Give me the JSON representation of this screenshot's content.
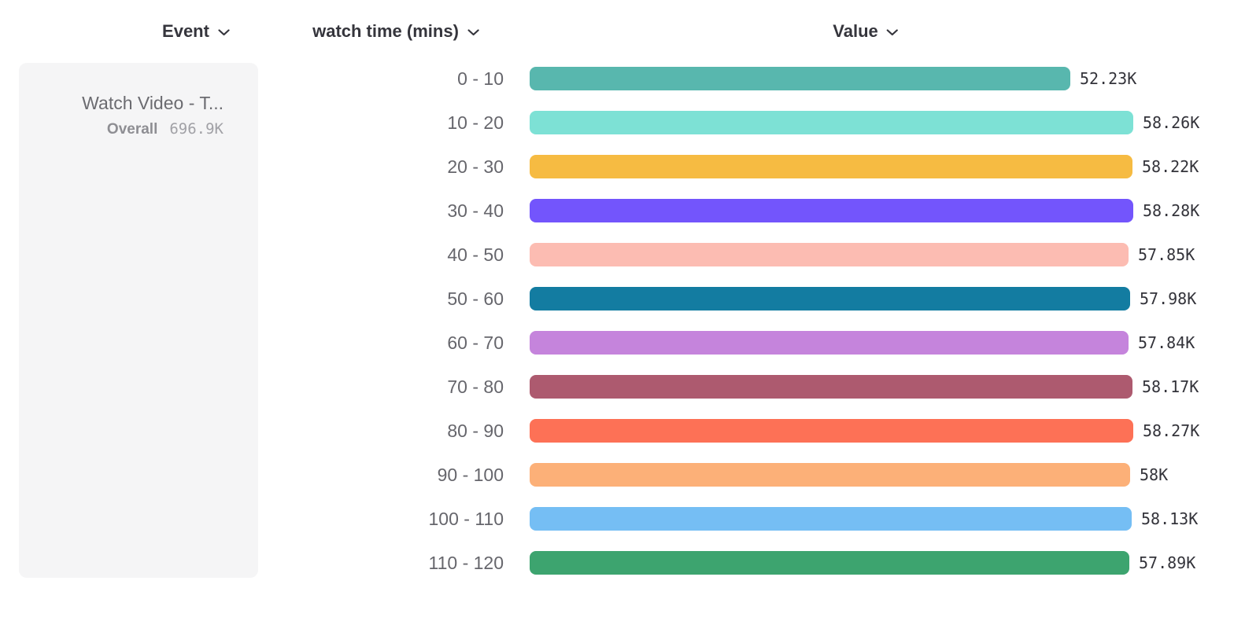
{
  "header": {
    "columns": [
      {
        "label": "Event"
      },
      {
        "label": "watch time (mins)"
      },
      {
        "label": "Value"
      }
    ]
  },
  "legend": {
    "event_name": "Watch Video - T...",
    "overall_label": "Overall",
    "overall_value": "696.9K"
  },
  "colors": {
    "header_text": "#35353c",
    "bucket_label_text": "#66666c",
    "value_text": "#33333a",
    "card_background": "#f5f5f6"
  },
  "chart_data": {
    "type": "bar",
    "orientation": "horizontal",
    "title": "",
    "xlabel": "Value",
    "ylabel": "watch time (mins)",
    "series_name": "Watch Video - T...",
    "series_overall_total": "696.9K",
    "categories": [
      "0 - 10",
      "10 - 20",
      "20 - 30",
      "30 - 40",
      "40 - 50",
      "50 - 60",
      "60 - 70",
      "70 - 80",
      "80 - 90",
      "90 - 100",
      "100 - 110",
      "110 - 120"
    ],
    "values": [
      52230,
      58260,
      58220,
      58280,
      57850,
      57980,
      57840,
      58170,
      58270,
      58000,
      58130,
      57890
    ],
    "value_labels": [
      "52.23K",
      "58.26K",
      "58.22K",
      "58.28K",
      "57.85K",
      "57.98K",
      "57.84K",
      "58.17K",
      "58.27K",
      "58K",
      "58.13K",
      "57.89K"
    ],
    "bar_colors": [
      "#58b7ae",
      "#7de1d5",
      "#f6bb42",
      "#7355fc",
      "#fcbcb2",
      "#137ca1",
      "#c584dc",
      "#ad5a6f",
      "#fd7156",
      "#fcb078",
      "#75bef4",
      "#3da46f"
    ],
    "xlim": [
      0,
      58280
    ],
    "grid": false,
    "legend_position": "left"
  },
  "layout": {
    "row_top_start": 85,
    "row_spacing": 56,
    "max_bar_width": 767
  }
}
